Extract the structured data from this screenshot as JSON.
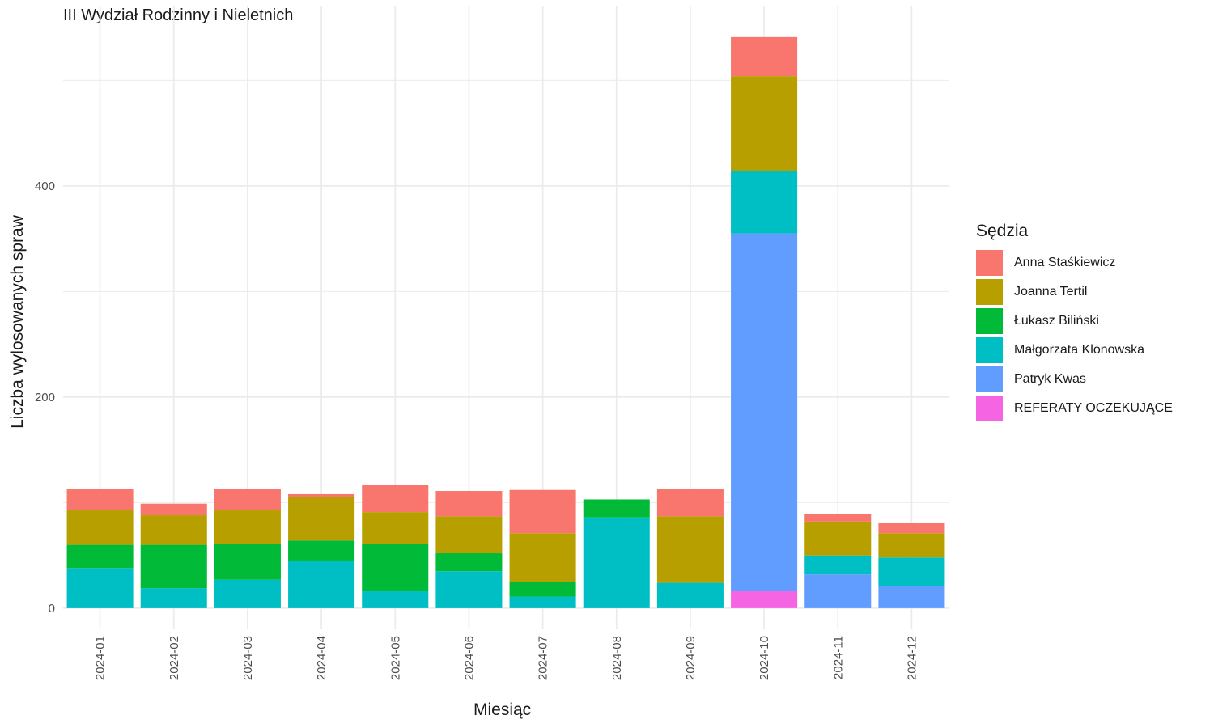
{
  "chart_data": {
    "type": "bar",
    "stacked": true,
    "title": "III Wydział Rodzinny i Nieletnich",
    "xlabel": "Miesiąc",
    "ylabel": "Liczba wylosowanych spraw",
    "ylim": [
      -20,
      570
    ],
    "yticks": [
      "0",
      "200",
      "400"
    ],
    "grid": true,
    "legend_title": "Sędzia",
    "legend_position": "right",
    "categories": [
      "2024-01",
      "2024-02",
      "2024-03",
      "2024-04",
      "2024-05",
      "2024-06",
      "2024-07",
      "2024-08",
      "2024-09",
      "2024-10",
      "2024-11",
      "2024-12"
    ],
    "series": [
      {
        "name": "REFERATY OCZEKUJĄCE",
        "color": "#F564E3",
        "values": [
          0,
          0,
          0,
          0,
          0,
          0,
          0,
          0,
          0,
          16,
          0,
          0
        ]
      },
      {
        "name": "Patryk Kwas",
        "color": "#619CFF",
        "values": [
          0,
          0,
          0,
          0,
          0,
          0,
          0,
          0,
          0,
          339,
          32,
          21
        ]
      },
      {
        "name": "Małgorzata Klonowska",
        "color": "#00BFC4",
        "values": [
          38,
          19,
          27,
          45,
          16,
          35,
          11,
          86,
          24,
          59,
          18,
          27
        ]
      },
      {
        "name": "Łukasz Biliński",
        "color": "#00BA38",
        "values": [
          22,
          41,
          34,
          19,
          45,
          17,
          14,
          17,
          0,
          0,
          0,
          0
        ]
      },
      {
        "name": "Joanna Tertil",
        "color": "#B79F00",
        "values": [
          33,
          28,
          32,
          41,
          30,
          35,
          46,
          0,
          63,
          90,
          32,
          23
        ]
      },
      {
        "name": "Anna Staśkiewicz",
        "color": "#F8766D",
        "values": [
          20,
          11,
          20,
          3,
          26,
          24,
          41,
          0,
          26,
          37,
          7,
          10
        ]
      }
    ]
  }
}
